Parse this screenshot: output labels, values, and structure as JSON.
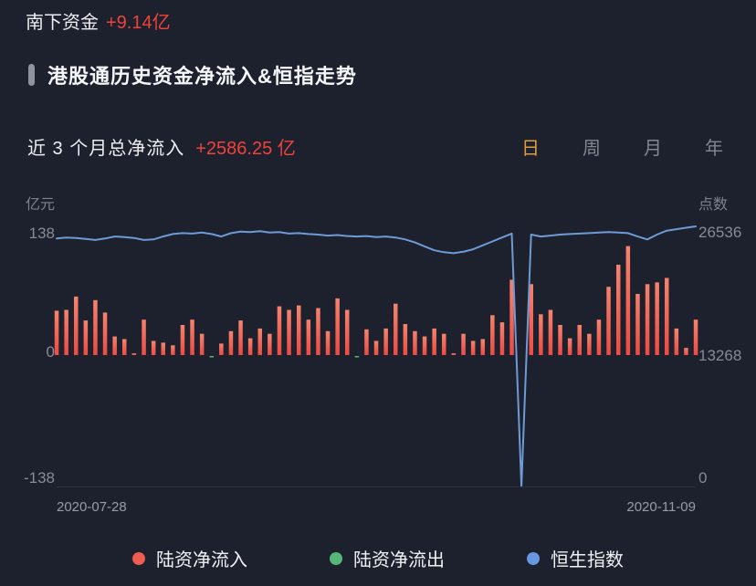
{
  "header": {
    "label": "南下资金",
    "value": "+9.14亿"
  },
  "section": {
    "title": "港股通历史资金净流入&恒指走势"
  },
  "summary": {
    "label": "近 3 个月总净流入",
    "value": "+2586.25 亿"
  },
  "tabs": {
    "items": [
      {
        "id": "day",
        "label": "日",
        "active": true
      },
      {
        "id": "week",
        "label": "周",
        "active": false
      },
      {
        "id": "month",
        "label": "月",
        "active": false
      },
      {
        "id": "year",
        "label": "年",
        "active": false
      }
    ]
  },
  "chart_data": {
    "type": "composite",
    "subtypes": [
      "bar",
      "line"
    ],
    "title": "港股通历史资金净流入&恒指走势",
    "left_axis": {
      "title": "亿元",
      "ticks": [
        138,
        0,
        -138
      ],
      "range": [
        -138,
        138
      ]
    },
    "right_axis": {
      "title": "点数",
      "ticks": [
        26536,
        13268,
        0
      ],
      "range": [
        0,
        26536
      ]
    },
    "x_axis": {
      "start_label": "2020-07-28",
      "end_label": "2020-11-09"
    },
    "grid": false,
    "colors": {
      "inflow": "#f2564c",
      "outflow": "#55b879",
      "index_line": "#6e9ad6",
      "accent_red": "#f0423a",
      "tab_active": "#e09c3c"
    },
    "series": [
      {
        "name": "陆资净流入/净流出(亿元)",
        "type": "bar",
        "values": [
          50,
          51,
          66,
          39,
          62,
          48,
          21,
          18,
          2,
          40,
          16,
          14,
          11,
          34,
          40,
          24,
          -1.5,
          13,
          27,
          39,
          19,
          30,
          24,
          55,
          51,
          56,
          40,
          53,
          27,
          64,
          51,
          -1.5,
          29,
          16,
          30,
          58,
          35,
          27,
          21,
          30,
          24,
          2,
          24,
          16,
          18,
          45,
          37,
          85,
          0,
          80,
          46,
          51,
          34,
          19,
          34,
          24,
          40,
          77,
          102,
          123,
          69,
          80,
          82,
          87,
          30,
          8,
          40
        ]
      },
      {
        "name": "恒生指数(点)",
        "type": "line",
        "values": [
          25300,
          25400,
          25350,
          25250,
          25150,
          25300,
          25500,
          25450,
          25350,
          25150,
          25200,
          25500,
          25750,
          25850,
          25800,
          25900,
          25750,
          25500,
          25850,
          26000,
          25950,
          26050,
          25900,
          25950,
          25800,
          25850,
          25750,
          25700,
          25600,
          25650,
          25550,
          25500,
          25550,
          25450,
          25500,
          25400,
          25200,
          24900,
          24500,
          24100,
          23900,
          23800,
          23950,
          24200,
          24600,
          25000,
          25400,
          25800,
          0,
          25700,
          25500,
          25600,
          25700,
          25750,
          25800,
          25850,
          25900,
          25950,
          25900,
          25850,
          25500,
          25200,
          25700,
          26100,
          26250,
          26400,
          26536
        ]
      }
    ],
    "legend": [
      {
        "label": "陆资净流入",
        "color": "#ef5c51"
      },
      {
        "label": "陆资净流出",
        "color": "#55b879"
      },
      {
        "label": "恒生指数",
        "color": "#6697e0"
      }
    ]
  }
}
